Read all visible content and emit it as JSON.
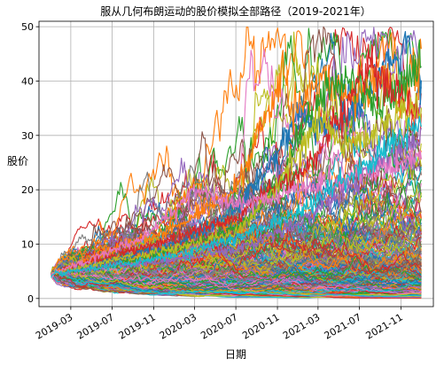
{
  "chart_data": {
    "type": "line",
    "title": "服从几何布朗运动的股价模拟全部路径（2019-2021年）",
    "xlabel": "日期",
    "ylabel": "股价",
    "x_range": [
      "2019-01-02",
      "2021-12-31"
    ],
    "ylim": [
      -1.5,
      51
    ],
    "x_ticks": [
      "2019-03",
      "2019-07",
      "2019-11",
      "2020-03",
      "2020-07",
      "2020-11",
      "2021-03",
      "2021-07",
      "2021-11"
    ],
    "y_ticks": [
      0,
      10,
      20,
      30,
      40,
      50
    ],
    "grid": true,
    "legend": "none",
    "initial_price": 4.5,
    "path_count": 500,
    "colors": [
      "#1f77b4",
      "#ff7f0e",
      "#2ca02c",
      "#d62728",
      "#9467bd",
      "#8c564b",
      "#e377c2",
      "#7f7f7f",
      "#bcbd22",
      "#17becf"
    ],
    "highlight_paths": [
      {
        "color": "#1f77b4",
        "points": [
          [
            "2019-01-02",
            4.5
          ],
          [
            "2019-07-01",
            7
          ],
          [
            "2020-01-02",
            10
          ],
          [
            "2020-07-01",
            16
          ],
          [
            "2020-10-01",
            24
          ],
          [
            "2021-01-04",
            34
          ],
          [
            "2021-04-01",
            31
          ],
          [
            "2021-07-01",
            36
          ],
          [
            "2021-11-01",
            44
          ],
          [
            "2021-11-15",
            49
          ],
          [
            "2021-12-31",
            38
          ]
        ]
      },
      {
        "color": "#ff7f0e",
        "points": [
          [
            "2019-01-02",
            4.5
          ],
          [
            "2019-07-01",
            9
          ],
          [
            "2020-01-02",
            13
          ],
          [
            "2020-07-01",
            20
          ],
          [
            "2020-10-15",
            36
          ],
          [
            "2020-11-15",
            43
          ],
          [
            "2020-12-15",
            35
          ],
          [
            "2021-03-15",
            40
          ],
          [
            "2021-06-01",
            37
          ],
          [
            "2021-09-01",
            41
          ],
          [
            "2021-11-01",
            35
          ],
          [
            "2021-12-31",
            45
          ]
        ]
      },
      {
        "color": "#2ca02c",
        "points": [
          [
            "2019-01-02",
            4.5
          ],
          [
            "2019-07-01",
            6
          ],
          [
            "2020-01-02",
            9
          ],
          [
            "2020-07-01",
            13
          ],
          [
            "2020-11-01",
            20
          ],
          [
            "2021-01-04",
            30
          ],
          [
            "2021-04-01",
            39
          ],
          [
            "2021-07-01",
            40
          ],
          [
            "2021-09-01",
            35
          ],
          [
            "2021-12-31",
            44
          ]
        ]
      },
      {
        "color": "#d62728",
        "points": [
          [
            "2019-01-02",
            4.5
          ],
          [
            "2019-07-01",
            8
          ],
          [
            "2020-01-02",
            11
          ],
          [
            "2020-07-01",
            15
          ],
          [
            "2020-11-01",
            21
          ],
          [
            "2021-02-01",
            24
          ],
          [
            "2021-06-01",
            36
          ],
          [
            "2021-08-01",
            43
          ],
          [
            "2021-10-01",
            39
          ],
          [
            "2021-12-31",
            33
          ]
        ]
      },
      {
        "color": "#9467bd",
        "points": [
          [
            "2019-01-02",
            4.5
          ],
          [
            "2019-07-01",
            6
          ],
          [
            "2020-01-02",
            7
          ],
          [
            "2020-07-01",
            9
          ],
          [
            "2021-01-04",
            14
          ],
          [
            "2021-07-01",
            22
          ],
          [
            "2021-12-31",
            30
          ]
        ]
      },
      {
        "color": "#bcbd22",
        "points": [
          [
            "2019-01-02",
            4.5
          ],
          [
            "2019-07-01",
            7
          ],
          [
            "2020-01-02",
            9
          ],
          [
            "2020-07-01",
            12
          ],
          [
            "2020-11-01",
            21
          ],
          [
            "2021-03-01",
            33
          ],
          [
            "2021-06-01",
            28
          ],
          [
            "2021-12-31",
            36
          ]
        ]
      },
      {
        "color": "#e377c2",
        "points": [
          [
            "2019-01-02",
            4.5
          ],
          [
            "2019-10-01",
            11
          ],
          [
            "2020-03-01",
            20
          ],
          [
            "2020-07-01",
            17
          ],
          [
            "2021-01-04",
            20
          ],
          [
            "2021-12-31",
            26
          ]
        ]
      },
      {
        "color": "#17becf",
        "points": [
          [
            "2019-01-02",
            4.5
          ],
          [
            "2019-07-01",
            6
          ],
          [
            "2020-01-02",
            8
          ],
          [
            "2020-07-01",
            11
          ],
          [
            "2021-01-04",
            16
          ],
          [
            "2021-07-01",
            24
          ],
          [
            "2021-12-31",
            32
          ]
        ]
      }
    ]
  }
}
